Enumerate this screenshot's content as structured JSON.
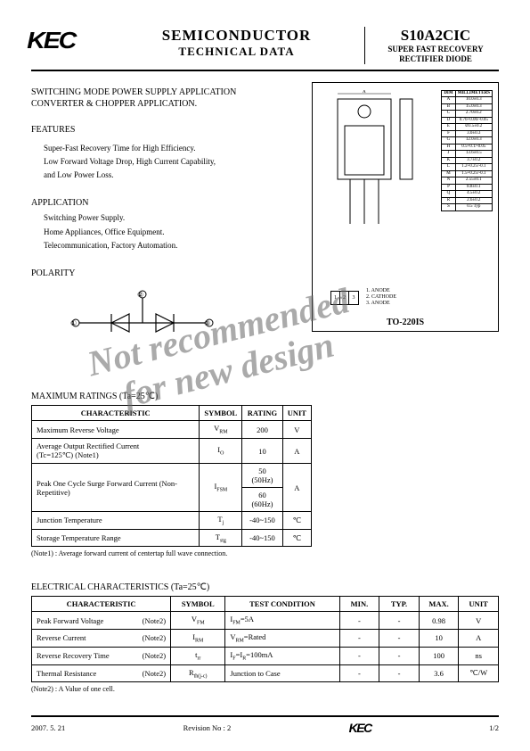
{
  "header": {
    "logo": "KEC",
    "title1": "SEMICONDUCTOR",
    "title2": "TECHNICAL DATA",
    "part_no": "S10A2CIC",
    "part_desc1": "SUPER FAST RECOVERY",
    "part_desc2": "RECTIFIER DIODE"
  },
  "intro": {
    "line1": "SWITCHING MODE POWER SUPPLY APPLICATION",
    "line2": "CONVERTER & CHOPPER APPLICATION."
  },
  "features": {
    "heading": "FEATURES",
    "line1": "Super-Fast Recovery Time for High Efficiency.",
    "line2": "Low Forward Voltage Drop, High Current Capability,",
    "line3": "and Low Power Loss."
  },
  "application": {
    "heading": "APPLICATION",
    "line1": "Switching Power Supply.",
    "line2": "Home Appliances, Office Equipment.",
    "line3": "Telecommunication, Factory Automation."
  },
  "polarity": {
    "heading": "POLARITY",
    "pin1": "①",
    "pin2": "②",
    "pin3": "③"
  },
  "package": {
    "name": "TO-220IS",
    "pin1_label": "1. ANODE",
    "pin2_label": "2. CATHODE",
    "pin3_label": "3. ANODE",
    "dim_header1": "DIM",
    "dim_header2": "MILLIMETERS",
    "dims": [
      [
        "A",
        "10.0±0.3"
      ],
      [
        "B",
        "15.0±0.3"
      ],
      [
        "C",
        "2.70±0.2"
      ],
      [
        "D",
        "0.76+0.06/-0.05"
      ],
      [
        "E",
        "Ø3.5±0.2"
      ],
      [
        "F",
        "3.0±0.3"
      ],
      [
        "G",
        "12.0±0.3"
      ],
      [
        "H",
        "0.5+0.1/-0.05"
      ],
      [
        "J",
        "13.6±0.5"
      ],
      [
        "K",
        "3.7±0.2"
      ],
      [
        "L",
        "1.2+0.25/-0.1"
      ],
      [
        "M",
        "1.5+0.25/-0.1"
      ],
      [
        "N",
        "2.55±0.1"
      ],
      [
        "P",
        "8.8±0.1"
      ],
      [
        "Q",
        "4.5±0.2"
      ],
      [
        "R",
        "2.6±0.2"
      ],
      [
        "S",
        "0.5 Typ"
      ]
    ]
  },
  "watermark": "Not recommended\n   for new design",
  "ratings": {
    "heading": "MAXIMUM RATINGS  (Ta=25℃)",
    "cols": [
      "CHARACTERISTIC",
      "SYMBOL",
      "RATING",
      "UNIT"
    ],
    "rows": [
      {
        "char": "Maximum Reverse Voltage",
        "sym": "V",
        "sub": "RM",
        "rating": "200",
        "unit": "V"
      },
      {
        "char": "Average Output Rectified Current\n(Tc=125℃)             (Note1)",
        "sym": "I",
        "sub": "O",
        "rating": "10",
        "unit": "A"
      },
      {
        "char": "Peak One Cycle Surge Forward Current (Non-Repetitive)",
        "sym": "I",
        "sub": "FSM",
        "rating50": "50 (50Hz)",
        "rating60": "60 (60Hz)",
        "unit": "A"
      },
      {
        "char": "Junction Temperature",
        "sym": "T",
        "sub": "j",
        "rating": "-40~150",
        "unit": "℃"
      },
      {
        "char": "Storage Temperature Range",
        "sym": "T",
        "sub": "stg",
        "rating": "-40~150",
        "unit": "℃"
      }
    ],
    "note": "(Note1) : Average forward current of centertap full wave connection."
  },
  "electrical": {
    "heading": "ELECTRICAL CHARACTERISTICS  (Ta=25℃)",
    "cols": [
      "CHARACTERISTIC",
      "SYMBOL",
      "TEST CONDITION",
      "MIN.",
      "TYP.",
      "MAX.",
      "UNIT"
    ],
    "rows": [
      {
        "char": "Peak Forward Voltage",
        "note": "(Note2)",
        "sym": "V",
        "sub": "FM",
        "cond": "IFM=5A",
        "min": "-",
        "typ": "-",
        "max": "0.98",
        "unit": "V"
      },
      {
        "char": "Reverse Current",
        "note": "(Note2)",
        "sym": "I",
        "sub": "RM",
        "cond": "VRM=Rated",
        "min": "-",
        "typ": "-",
        "max": "10",
        "unit": "A"
      },
      {
        "char": "Reverse Recovery Time",
        "note": "(Note2)",
        "sym": "t",
        "sub": "rr",
        "cond": "IF=IR=100mA",
        "min": "-",
        "typ": "-",
        "max": "100",
        "unit": "ns"
      },
      {
        "char": "Thermal Resistance",
        "note": "(Note2)",
        "sym": "R",
        "sub": "th(j-c)",
        "cond": "Junction to Case",
        "min": "-",
        "typ": "-",
        "max": "3.6",
        "unit": "℃/W"
      }
    ],
    "note": "(Note2) : A Value of one cell."
  },
  "footer": {
    "date": "2007. 5. 21",
    "rev": "Revision No : 2",
    "logo": "KEC",
    "page": "1/2"
  }
}
